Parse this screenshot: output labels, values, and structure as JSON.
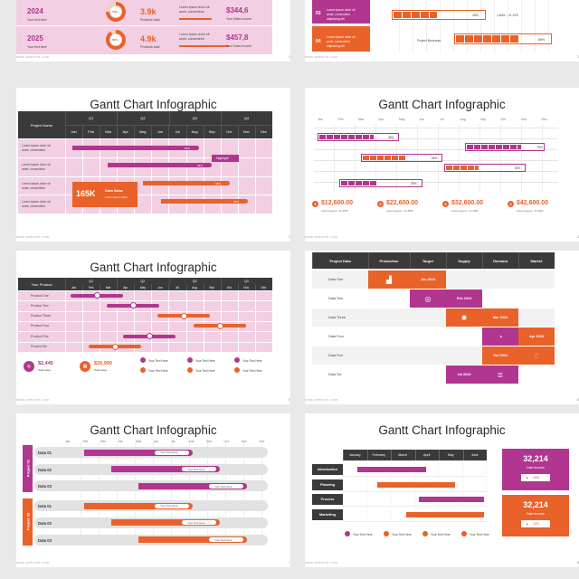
{
  "footer": "www.website.com",
  "top_left": {
    "page": "1",
    "rows": [
      {
        "year": "2024",
        "sub": "Your text here",
        "pct": "75%",
        "val": "3.9k",
        "val_sub": "Products total",
        "desc1": "Lorem ipsum dolor sit",
        "desc2": "amet, consectetur",
        "money": "$344,6",
        "money_sub": "Your Data Income"
      },
      {
        "year": "2025",
        "sub": "Your text here",
        "pct": "90%",
        "val": "4.9k",
        "val_sub": "Products total",
        "desc1": "Lorem ipsum dolor sit",
        "desc2": "amet, consectetur",
        "money": "$457,8",
        "money_sub": "Your Data Income"
      }
    ]
  },
  "top_right": {
    "page": "2",
    "items": [
      {
        "num": "03",
        "desc1": "Lorem ipsum dolor sit",
        "desc2": "amet, consectetur",
        "desc3": "adipiscing elit"
      },
      {
        "num": "04",
        "desc1": "Lorem ipsum dolor sit",
        "desc2": "amet, consectetur",
        "desc3": "adipiscing elit"
      }
    ],
    "pct1": "45%",
    "formula": "1,655 - % 129",
    "label": "Project Business",
    "pct2": "85%"
  },
  "s3": {
    "title": "Gantt Chart Infographic",
    "page": "3",
    "corner": "Project Name",
    "quarters": [
      "Q1",
      "Q2",
      "Q3",
      "Q4"
    ],
    "months": [
      "Jan",
      "Feb",
      "Mar",
      "Apr",
      "May",
      "Jun",
      "Jul",
      "Aug",
      "Sep",
      "Oct",
      "Nov",
      "Dec"
    ],
    "row_label1": "Lorem ipsum dolor sit",
    "row_label2": "amet, consectetur",
    "bars": [
      "80%",
      "35%",
      "28%",
      "75%"
    ],
    "highlight": "Highlight",
    "kpi": "165K",
    "kpi_title": "Data Value",
    "kpi_sub": "Lorem ipsum dolor"
  },
  "s4": {
    "title": "Gantt Chart Infographic",
    "page": "4",
    "months": [
      "Jan",
      "Feb",
      "Mar",
      "Apr",
      "May",
      "Jun",
      "Jul",
      "Aug",
      "Sep",
      "Oct",
      "Nov",
      "Dec"
    ],
    "bars": [
      "45%",
      "75%",
      "65%",
      "55%",
      "25%"
    ],
    "stats": [
      {
        "value": "$12,600.00",
        "sub": "Lorem ipsum - % 29%"
      },
      {
        "value": "$22,600.00",
        "sub": "Lorem ipsum - % 29%"
      },
      {
        "value": "$32,600.00",
        "sub": "Lorem ipsum - % 29%"
      },
      {
        "value": "$42,600.00",
        "sub": "Lorem ipsum - % 29%"
      }
    ]
  },
  "s5": {
    "title": "Gantt Chart Infographic",
    "page": "5",
    "corner": "Your Product",
    "quarters": [
      "Q1",
      "Q2",
      "Q3",
      "Q4"
    ],
    "months": [
      "Jan",
      "Feb",
      "Mar",
      "Apr",
      "May",
      "Jun",
      "Jul",
      "Aug",
      "Sep",
      "Oct",
      "Nov",
      "Dec"
    ],
    "products": [
      "Product One",
      "Product Two",
      "Product Three",
      "Product Four",
      "Product Five",
      "Product Six"
    ],
    "kpis": [
      {
        "value": "$2,445",
        "sub": "Total sales"
      },
      {
        "value": "$35,990",
        "sub": "Total sales"
      }
    ],
    "legend": [
      "Your Text Here",
      "Your Text Here",
      "Your Text Here",
      "Your Text Here",
      "Your Text Here",
      "Your Text Here"
    ]
  },
  "s6": {
    "title": "",
    "page": "6",
    "headers": [
      "Project Data",
      "Production",
      "Target",
      "Supply",
      "Demand",
      "Market"
    ],
    "rows": [
      "Data One",
      "Data Two",
      "Data Three",
      "Data Four",
      "Data Five",
      "Data Six"
    ],
    "cells": [
      "Jan 2024",
      "Feb 2024",
      "Mar 2024",
      "Apr 2024",
      "Oct 2024",
      "Jul 2024"
    ]
  },
  "s7": {
    "title": "Gantt Chart Infographic",
    "page": "7",
    "months": [
      "Jan",
      "Feb",
      "Mar",
      "Apr",
      "May",
      "Jun",
      "Jul",
      "Aug",
      "Sep",
      "Oct",
      "Nov",
      "Dec"
    ],
    "group1": "Project 01",
    "group2": "Project 02",
    "rows": [
      "Data 01",
      "Data 02",
      "Data 03",
      "Data 01",
      "Data 02",
      "Data 03"
    ],
    "bar_text": "Your Text Here"
  },
  "s8": {
    "title": "Gantt Chart Infographic",
    "page": "8",
    "months": [
      "January",
      "February",
      "March",
      "April",
      "May",
      "June"
    ],
    "rows": [
      "Introduction",
      "Planning",
      "Process",
      "Marketing"
    ],
    "cards": [
      {
        "value": "32,214",
        "sub": "Data Income",
        "badge": "10%"
      },
      {
        "value": "32,214",
        "sub": "Data Income",
        "badge": "10%"
      }
    ],
    "legend": [
      "Your Text Here",
      "Your Text Here",
      "Your Text Here",
      "Your Text Here"
    ]
  },
  "colors": {
    "magenta": "#b0368f",
    "orange": "#e8622a",
    "pink": "#f2cfe2",
    "dark": "#3a3a3a"
  }
}
